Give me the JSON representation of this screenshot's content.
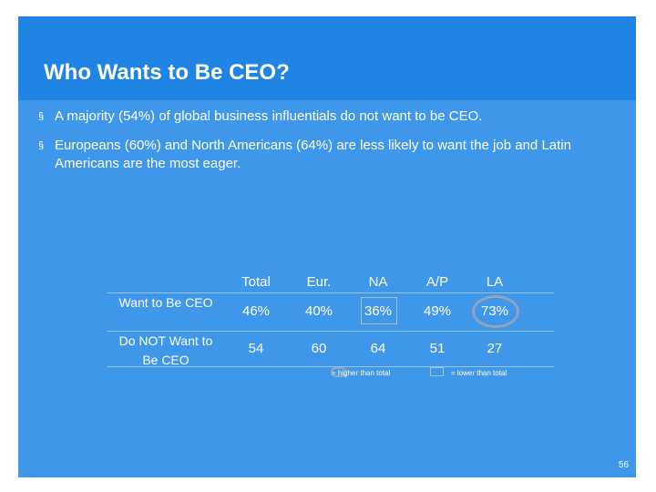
{
  "title": "Who Wants to Be CEO?",
  "bullets": [
    {
      "marker": "§",
      "text": "A majority (54%) of global business influentials do not want to be CEO."
    },
    {
      "marker": "§",
      "text": "Europeans (60%) and North Americans (64%) are less likely to want the job and Latin Americans are the most eager."
    }
  ],
  "table": {
    "columns": [
      "Total",
      "Eur.",
      "NA",
      "A/P",
      "LA"
    ],
    "rows": [
      {
        "label": "Want to Be CEO",
        "values": [
          "46%",
          "40%",
          "36%",
          "49%",
          "73%"
        ]
      },
      {
        "label": "Do NOT Want to Be CEO",
        "values": [
          "54",
          "60",
          "64",
          "51",
          "27"
        ]
      }
    ]
  },
  "legend": {
    "higher": "= higher than total",
    "lower": "= lower than total"
  },
  "page_number": "56",
  "colors": {
    "title_band": "#1f84e3",
    "body": "#3f97e9",
    "higher_marker": "#8fa4bd",
    "lower_marker": "#a8c0d9"
  }
}
